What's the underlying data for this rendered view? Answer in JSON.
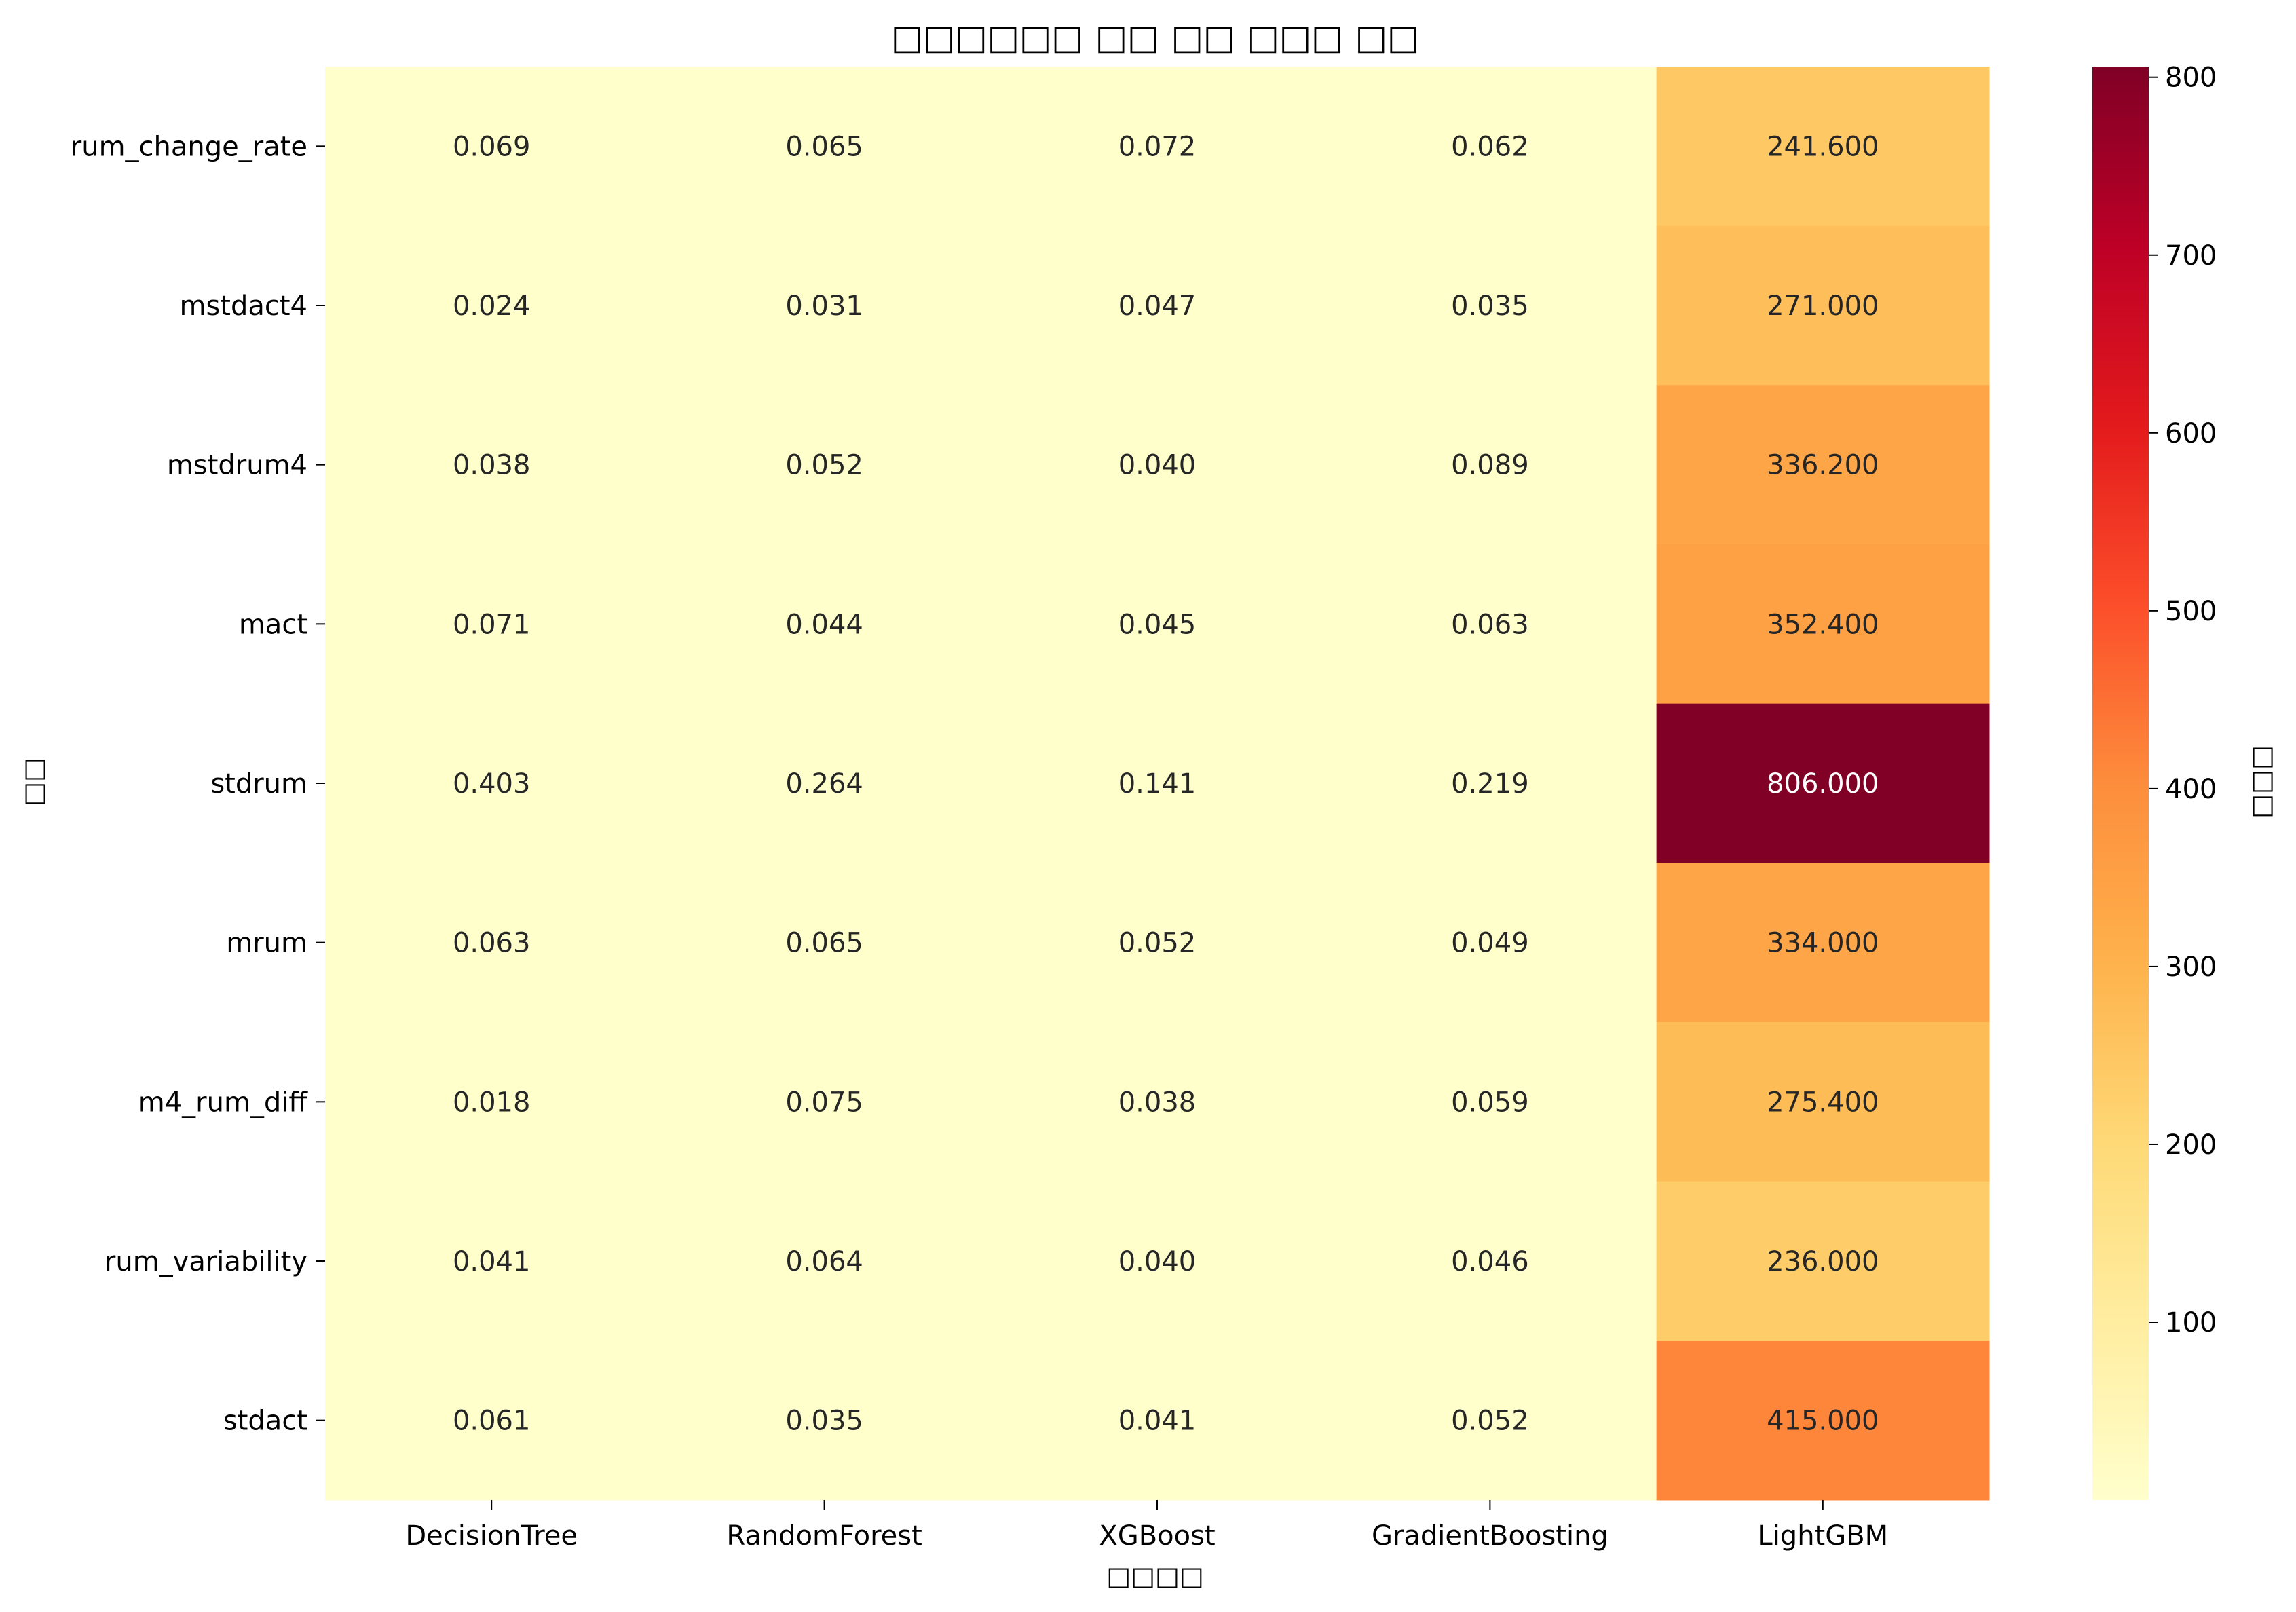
{
  "chart_data": {
    "type": "heatmap",
    "title": "□□□□□□ □□ □□ □□□ □□",
    "xlabel": "□□□□",
    "ylabel": "□□",
    "colorbar_label": "□□□",
    "colormap": "YlOrRd",
    "colormap_stops": [
      "#ffffcc",
      "#ffeda0",
      "#fed976",
      "#feb24c",
      "#fd8d3c",
      "#fc4e2a",
      "#e31a1c",
      "#bd0026",
      "#800026"
    ],
    "value_range": [
      0.018,
      806.0
    ],
    "colorbar_ticks": [
      100,
      200,
      300,
      400,
      500,
      600,
      700,
      800
    ],
    "columns": [
      "DecisionTree",
      "RandomForest",
      "XGBoost",
      "GradientBoosting",
      "LightGBM"
    ],
    "rows": [
      "rum_change_rate",
      "mstdact4",
      "mstdrum4",
      "mact",
      "stdrum",
      "mrum",
      "m4_rum_diff",
      "rum_variability",
      "stdact"
    ],
    "values": [
      [
        0.069,
        0.065,
        0.072,
        0.062,
        241.6
      ],
      [
        0.024,
        0.031,
        0.047,
        0.035,
        271.0
      ],
      [
        0.038,
        0.052,
        0.04,
        0.089,
        336.2
      ],
      [
        0.071,
        0.044,
        0.045,
        0.063,
        352.4
      ],
      [
        0.403,
        0.264,
        0.141,
        0.219,
        806.0
      ],
      [
        0.063,
        0.065,
        0.052,
        0.049,
        334.0
      ],
      [
        0.018,
        0.075,
        0.038,
        0.059,
        275.4
      ],
      [
        0.041,
        0.064,
        0.04,
        0.046,
        236.0
      ],
      [
        0.061,
        0.035,
        0.041,
        0.052,
        415.0
      ]
    ],
    "value_format": "3 decimals",
    "grid": false
  }
}
